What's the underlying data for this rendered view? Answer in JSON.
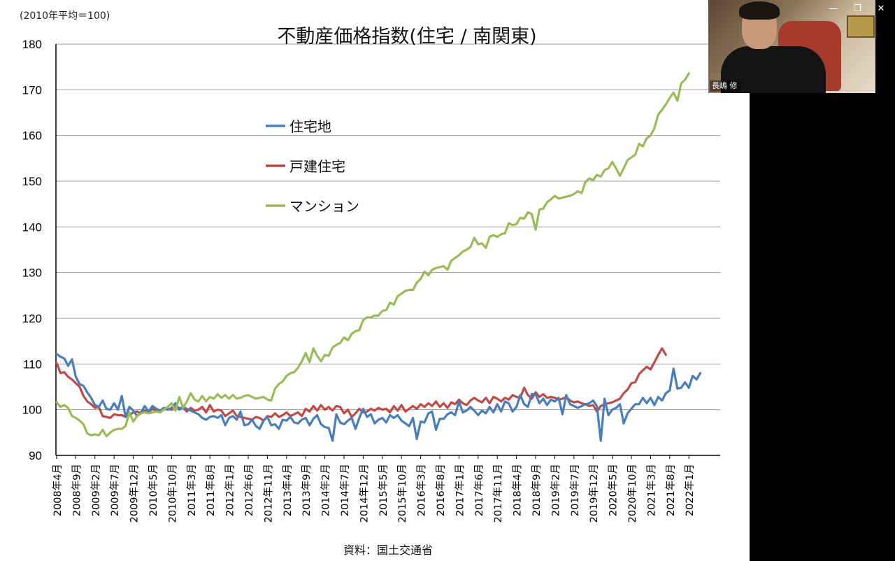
{
  "window_controls": {
    "minimize": "—",
    "restore": "❐",
    "close": "✕"
  },
  "participant": {
    "name": "長嶋 修"
  },
  "chart_data": {
    "type": "line",
    "title": "不動産価格指数(住宅 / 南関東)",
    "unit_note": "(2010年平均＝100)",
    "source": "資料：国土交通省",
    "ylim": [
      90,
      180
    ],
    "yticks": [
      90,
      100,
      110,
      120,
      130,
      140,
      150,
      160,
      170,
      180
    ],
    "grid": true,
    "legend_position": "upper-left",
    "x_tick_labels": [
      "2008年4月",
      "2008年9月",
      "2009年2月",
      "2009年7月",
      "2009年12月",
      "2010年5月",
      "2010年10月",
      "2011年3月",
      "2011年8月",
      "2012年1月",
      "2012年6月",
      "2012年11月",
      "2013年4月",
      "2013年9月",
      "2014年2月",
      "2014年7月",
      "2014年12月",
      "2015年5月",
      "2015年10月",
      "2016年3月",
      "2016年8月",
      "2017年1月",
      "2017年6月",
      "2017年11月",
      "2018年4月",
      "2018年9月",
      "2019年2月",
      "2019年7月",
      "2019年12月",
      "2020年5月",
      "2020年10月",
      "2021年3月",
      "2021年8月",
      "2022年1月"
    ],
    "x_start": "2008年4月",
    "series": [
      {
        "name": "住宅地",
        "color": "#4a7ebb",
        "values": [
          112.2,
          111.6,
          111.2,
          109.6,
          111.0,
          107.2,
          105.6,
          105.2,
          103.8,
          102.6,
          101.0,
          100.6,
          102.0,
          100.2,
          100.0,
          101.4,
          100.0,
          103.0,
          98.4,
          100.6,
          99.8,
          98.6,
          99.4,
          100.8,
          99.6,
          100.8,
          100.2,
          99.8,
          100.4,
          100.0,
          100.4,
          101.4,
          100.0,
          100.6,
          100.2,
          99.8,
          99.4,
          99.0,
          98.2,
          97.8,
          98.4,
          98.6,
          98.2,
          98.8,
          96.6,
          98.2,
          98.6,
          97.8,
          99.6,
          96.6,
          96.8,
          97.8,
          96.4,
          95.8,
          97.6,
          98.4,
          96.6,
          96.8,
          95.8,
          97.8,
          97.6,
          98.4,
          97.2,
          97.0,
          97.8,
          98.2,
          96.6,
          98.0,
          98.8,
          96.8,
          96.2,
          96.0,
          93.2,
          99.0,
          97.2,
          96.8,
          97.6,
          98.2,
          95.8,
          98.2,
          100.2,
          98.4,
          99.0,
          97.0,
          97.8,
          98.2,
          97.2,
          98.8,
          98.2,
          98.8,
          97.6,
          97.0,
          96.4,
          98.2,
          93.6,
          97.4,
          97.2,
          99.2,
          99.6,
          95.6,
          98.0,
          98.0,
          99.0,
          99.4,
          98.8,
          101.8,
          99.4,
          99.8,
          100.6,
          99.8,
          98.8,
          99.8,
          99.2,
          100.6,
          99.4,
          101.2,
          99.6,
          101.8,
          101.4,
          99.6,
          100.6,
          103.2,
          101.2,
          100.6,
          103.4,
          103.4,
          101.4,
          102.4,
          101.0,
          102.2,
          101.8,
          102.6,
          99.0,
          103.2,
          101.2,
          100.8,
          100.4,
          100.8,
          101.2,
          101.4,
          102.0,
          100.8,
          93.2,
          102.4,
          98.8,
          100.0,
          100.4,
          101.2,
          97.0,
          99.2,
          100.2,
          101.2,
          101.2,
          102.6,
          101.4,
          102.6,
          101.0,
          102.8,
          102.0,
          103.6,
          104.2,
          109.0,
          104.6,
          104.8,
          106.0,
          104.8,
          107.4,
          106.6,
          108.0
        ]
      },
      {
        "name": "戸建住宅",
        "color": "#be4b48",
        "values": [
          110.2,
          108.0,
          108.2,
          107.2,
          106.6,
          105.8,
          105.0,
          103.0,
          101.8,
          101.2,
          100.4,
          100.6,
          98.6,
          98.4,
          98.2,
          99.0,
          98.8,
          98.8,
          98.4,
          98.8,
          99.4,
          99.6,
          99.2,
          99.8,
          99.4,
          100.2,
          99.8,
          99.6,
          100.0,
          100.2,
          100.0,
          100.6,
          100.4,
          100.4,
          99.6,
          100.4,
          99.8,
          100.0,
          100.6,
          99.4,
          101.0,
          99.6,
          100.0,
          99.8,
          98.6,
          99.2,
          99.8,
          98.6,
          98.4,
          98.2,
          98.0,
          97.8,
          98.4,
          98.2,
          97.6,
          98.6,
          98.4,
          99.2,
          98.4,
          98.8,
          99.4,
          98.6,
          99.0,
          99.4,
          98.6,
          100.2,
          99.6,
          100.8,
          99.8,
          101.0,
          100.0,
          100.6,
          99.8,
          100.8,
          100.6,
          99.2,
          100.0,
          98.4,
          99.2,
          100.2,
          99.4,
          99.6,
          100.2,
          99.8,
          100.4,
          100.0,
          100.2,
          99.4,
          100.8,
          99.8,
          101.0,
          99.6,
          100.2,
          100.8,
          100.2,
          101.2,
          100.6,
          101.4,
          100.8,
          101.8,
          100.6,
          101.4,
          100.4,
          101.6,
          101.2,
          102.2,
          101.4,
          101.0,
          102.0,
          102.6,
          102.0,
          101.6,
          102.6,
          101.4,
          102.8,
          102.4,
          101.8,
          102.6,
          102.2,
          103.2,
          102.8,
          102.6,
          104.8,
          103.2,
          102.4,
          103.8,
          102.8,
          103.4,
          102.6,
          102.8,
          102.6,
          102.2,
          102.4,
          102.8,
          102.0,
          101.6,
          101.8,
          101.4,
          101.2,
          100.8,
          101.0,
          99.6,
          100.8,
          101.2,
          101.4,
          101.6,
          102.0,
          102.4,
          103.6,
          104.4,
          105.8,
          106.0,
          107.8,
          108.6,
          109.4,
          108.8,
          110.4,
          112.0,
          113.4,
          112.0
        ]
      },
      {
        "name": "マンション",
        "color": "#9bbb59",
        "values": [
          101.6,
          100.6,
          101.0,
          100.4,
          98.6,
          98.2,
          97.6,
          96.8,
          94.8,
          94.4,
          94.6,
          94.4,
          95.6,
          94.2,
          95.0,
          95.6,
          95.8,
          95.8,
          96.4,
          99.4,
          97.4,
          98.6,
          99.2,
          99.4,
          99.2,
          99.4,
          99.6,
          99.4,
          100.0,
          100.6,
          101.4,
          99.8,
          102.8,
          100.4,
          101.8,
          103.6,
          102.2,
          101.8,
          103.0,
          101.8,
          102.8,
          102.4,
          103.4,
          102.6,
          103.2,
          102.4,
          103.2,
          102.4,
          102.6,
          103.0,
          103.2,
          102.8,
          102.4,
          102.6,
          102.8,
          102.2,
          102.0,
          104.6,
          105.6,
          106.2,
          107.4,
          108.0,
          108.2,
          109.2,
          110.6,
          112.4,
          110.4,
          113.4,
          111.8,
          110.6,
          112.0,
          111.8,
          113.6,
          114.2,
          114.6,
          115.8,
          115.2,
          116.6,
          117.2,
          117.4,
          119.6,
          120.2,
          120.2,
          120.6,
          120.6,
          121.6,
          121.8,
          123.4,
          123.0,
          124.8,
          125.4,
          126.0,
          126.2,
          126.2,
          127.8,
          128.6,
          130.2,
          129.4,
          130.6,
          131.0,
          131.2,
          131.4,
          130.6,
          132.6,
          133.2,
          133.8,
          134.6,
          135.0,
          135.6,
          137.6,
          136.2,
          136.4,
          135.4,
          137.8,
          138.2,
          137.8,
          138.4,
          138.6,
          140.8,
          140.4,
          140.6,
          142.0,
          141.8,
          143.2,
          142.8,
          139.4,
          143.8,
          144.0,
          145.4,
          146.0,
          146.8,
          146.2,
          146.4,
          146.6,
          146.8,
          147.2,
          147.8,
          147.4,
          149.8,
          150.6,
          150.2,
          151.4,
          151.0,
          152.4,
          152.8,
          154.2,
          152.8,
          151.2,
          152.8,
          154.6,
          155.2,
          155.8,
          158.2,
          157.6,
          159.4,
          160.0,
          161.6,
          164.6,
          165.6,
          166.8,
          168.2,
          169.4,
          167.6,
          171.4,
          172.2,
          173.6
        ]
      }
    ]
  }
}
